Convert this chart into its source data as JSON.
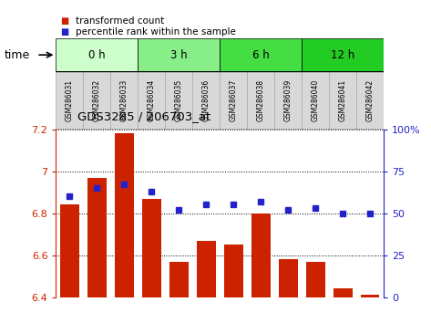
{
  "title": "GDS3285 / 206703_at",
  "samples": [
    "GSM286031",
    "GSM286032",
    "GSM286033",
    "GSM286034",
    "GSM286035",
    "GSM286036",
    "GSM286037",
    "GSM286038",
    "GSM286039",
    "GSM286040",
    "GSM286041",
    "GSM286042"
  ],
  "bar_values": [
    6.84,
    6.97,
    7.18,
    6.87,
    6.57,
    6.67,
    6.65,
    6.8,
    6.58,
    6.57,
    6.44,
    6.41
  ],
  "percentile_values": [
    60,
    65,
    67,
    63,
    52,
    55,
    55,
    57,
    52,
    53,
    50,
    50
  ],
  "bar_color": "#cc2200",
  "percentile_color": "#2222cc",
  "ylim": [
    6.4,
    7.2
  ],
  "y2lim": [
    0,
    100
  ],
  "yticks": [
    6.4,
    6.6,
    6.8,
    7.0,
    7.2
  ],
  "y2ticks": [
    0,
    25,
    50,
    75,
    100
  ],
  "time_groups": [
    {
      "label": "0 h",
      "start": 0,
      "end": 3,
      "color": "#ccffcc"
    },
    {
      "label": "3 h",
      "start": 3,
      "end": 6,
      "color": "#88ee88"
    },
    {
      "label": "6 h",
      "start": 6,
      "end": 9,
      "color": "#44dd44"
    },
    {
      "label": "12 h",
      "start": 9,
      "end": 12,
      "color": "#22cc22"
    }
  ],
  "xlabel_time": "time",
  "legend_bar_label": "transformed count",
  "legend_pct_label": "percentile rank within the sample",
  "bar_color_left_axis": "#cc2200",
  "bar_color_right_axis": "#2222cc",
  "bar_width": 0.7,
  "sample_box_color": "#d8d8d8",
  "sample_box_edge": "#aaaaaa"
}
